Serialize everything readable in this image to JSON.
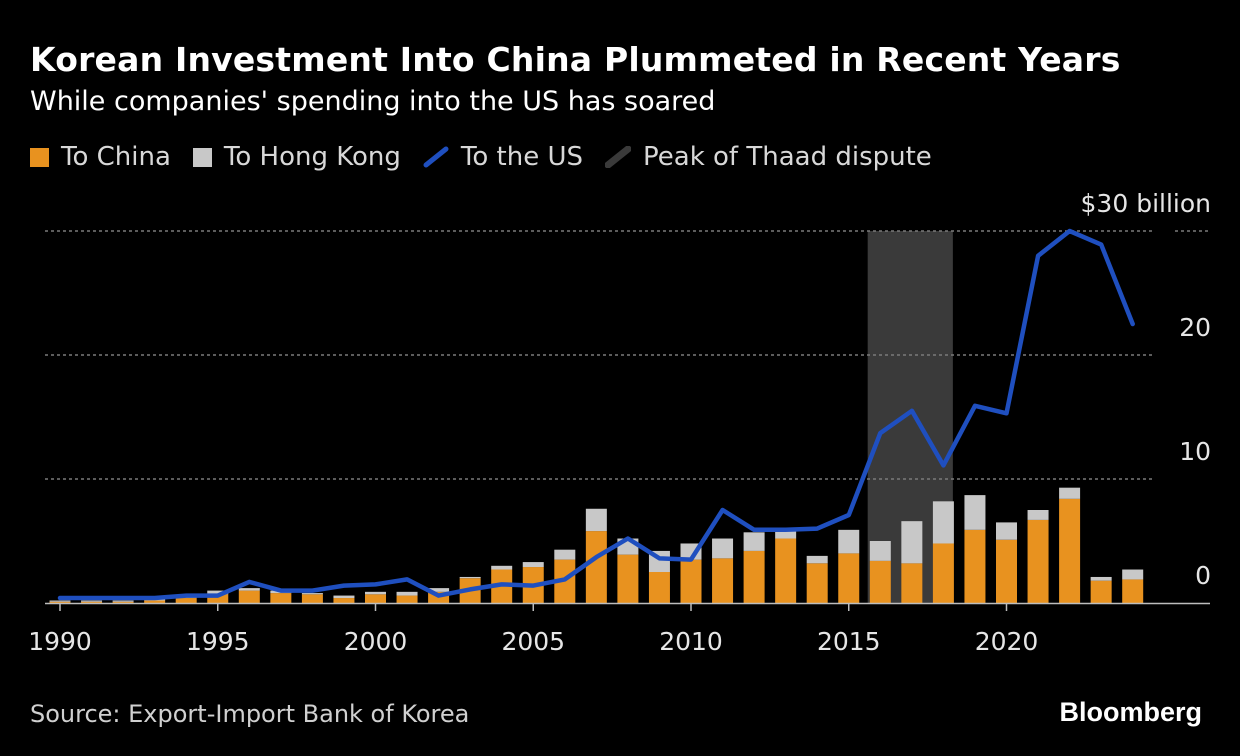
{
  "title": "Korean Investment Into China Plummeted in Recent Years",
  "subtitle": "While companies' spending into the US has soared",
  "legend": {
    "china": "To China",
    "hongkong": "To Hong Kong",
    "us": "To the US",
    "thaad": "Peak of Thaad dispute"
  },
  "source": "Source: Export-Import Bank of Korea",
  "brand": "Bloomberg",
  "colors": {
    "china": "#e8921f",
    "hongkong": "#c8c8c8",
    "us": "#1f4fbf",
    "thaad": "#3a3a3a",
    "grid": "#7a7a7a",
    "background": "#000000"
  },
  "chart_data": {
    "type": "bar",
    "title": "Korean Investment Into China Plummeted in Recent Years",
    "xlabel": "",
    "ylabel": "$ billion",
    "ylim": [
      0,
      30
    ],
    "y_ticks": [
      0,
      10,
      20,
      30
    ],
    "y_tick_labels": [
      "0",
      "10",
      "20",
      "$30 billion"
    ],
    "x_ticks": [
      1990,
      1995,
      2000,
      2005,
      2010,
      2015,
      2020
    ],
    "x_tick_labels": [
      "1990",
      "1995",
      "2000",
      "2005",
      "2010",
      "2015",
      "2020"
    ],
    "categories": [
      1990,
      1991,
      1992,
      1993,
      1994,
      1995,
      1996,
      1997,
      1998,
      1999,
      2000,
      2001,
      2002,
      2003,
      2004,
      2005,
      2006,
      2007,
      2008,
      2009,
      2010,
      2011,
      2012,
      2013,
      2014,
      2015,
      2016,
      2017,
      2018,
      2019,
      2020,
      2021,
      2022,
      2023,
      2024
    ],
    "series": [
      {
        "name": "To China",
        "kind": "bar",
        "values": [
          0.1,
          0.1,
          0.1,
          0.2,
          0.4,
          0.7,
          1.0,
          0.8,
          0.7,
          0.4,
          0.7,
          0.6,
          0.9,
          2.0,
          2.7,
          2.9,
          3.5,
          5.8,
          3.9,
          2.5,
          3.5,
          3.6,
          4.2,
          5.2,
          3.2,
          4.0,
          3.4,
          3.2,
          4.8,
          5.9,
          5.1,
          6.7,
          8.4,
          1.8,
          1.9
        ]
      },
      {
        "name": "To Hong Kong",
        "kind": "bar",
        "stacked_on": "To China",
        "values": [
          0.1,
          0.1,
          0.1,
          0.1,
          0.2,
          0.3,
          0.2,
          0.2,
          0.1,
          0.2,
          0.2,
          0.3,
          0.3,
          0.1,
          0.3,
          0.4,
          0.8,
          1.8,
          1.3,
          1.7,
          1.3,
          1.6,
          1.5,
          0.6,
          0.6,
          1.9,
          1.6,
          3.4,
          3.4,
          2.8,
          1.4,
          0.8,
          0.9,
          0.3,
          0.8
        ]
      },
      {
        "name": "To the US",
        "kind": "line",
        "values": [
          0.4,
          0.4,
          0.4,
          0.4,
          0.6,
          0.6,
          1.7,
          1.0,
          1.0,
          1.4,
          1.5,
          1.9,
          0.6,
          1.1,
          1.5,
          1.4,
          1.9,
          3.7,
          5.2,
          3.6,
          3.5,
          7.5,
          5.9,
          5.9,
          6.0,
          7.1,
          13.7,
          15.5,
          11.1,
          15.9,
          15.3,
          28.0,
          30.0,
          28.9,
          22.5
        ]
      }
    ],
    "shaded_region": {
      "label": "Peak of Thaad dispute",
      "x_start": 2015.6,
      "x_end": 2018.3
    }
  }
}
